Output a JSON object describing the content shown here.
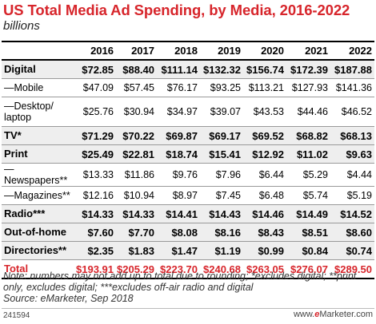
{
  "chart_data": {
    "type": "table",
    "title": "US Total Media Ad Spending, by Media, 2016-2022",
    "subtitle": "billions",
    "columns": [
      "",
      "2016",
      "2017",
      "2018",
      "2019",
      "2020",
      "2021",
      "2022"
    ],
    "rows": [
      {
        "label": "Digital",
        "style": "main",
        "values": [
          "$72.85",
          "$88.40",
          "$111.14",
          "$132.32",
          "$156.74",
          "$172.39",
          "$187.88"
        ]
      },
      {
        "label": "—Mobile",
        "style": "sub",
        "values": [
          "$47.09",
          "$57.45",
          "$76.17",
          "$93.25",
          "$113.21",
          "$127.93",
          "$141.36"
        ]
      },
      {
        "label": "—Desktop/ laptop",
        "style": "tall",
        "values": [
          "$25.76",
          "$30.94",
          "$34.97",
          "$39.07",
          "$43.53",
          "$44.46",
          "$46.52"
        ]
      },
      {
        "label": "TV*",
        "style": "main",
        "values": [
          "$71.29",
          "$70.22",
          "$69.87",
          "$69.17",
          "$69.52",
          "$68.82",
          "$68.13"
        ]
      },
      {
        "label": "Print",
        "style": "main",
        "values": [
          "$25.49",
          "$22.81",
          "$18.74",
          "$15.41",
          "$12.92",
          "$11.02",
          "$9.63"
        ]
      },
      {
        "label": "—Newspapers**",
        "style": "sub",
        "values": [
          "$13.33",
          "$11.86",
          "$9.76",
          "$7.96",
          "$6.44",
          "$5.29",
          "$4.44"
        ]
      },
      {
        "label": "—Magazines**",
        "style": "sub",
        "values": [
          "$12.16",
          "$10.94",
          "$8.97",
          "$7.45",
          "$6.48",
          "$5.74",
          "$5.19"
        ]
      },
      {
        "label": "Radio***",
        "style": "main",
        "values": [
          "$14.33",
          "$14.33",
          "$14.41",
          "$14.43",
          "$14.46",
          "$14.49",
          "$14.52"
        ]
      },
      {
        "label": "Out-of-home",
        "style": "main",
        "values": [
          "$7.60",
          "$7.70",
          "$8.08",
          "$8.16",
          "$8.43",
          "$8.51",
          "$8.60"
        ]
      },
      {
        "label": "Directories**",
        "style": "main",
        "values": [
          "$2.35",
          "$1.83",
          "$1.47",
          "$1.19",
          "$0.99",
          "$0.84",
          "$0.74"
        ]
      },
      {
        "label": "Total",
        "style": "total",
        "values": [
          "$193.91",
          "$205.29",
          "$223.70",
          "$240.68",
          "$263.05",
          "$276.07",
          "$289.50"
        ]
      }
    ]
  },
  "note": "Note: numbers may not add up to total due to rounding; *excludes digital; **print only, excludes digital; ***excludes off-air radio and digital",
  "source": "Source: eMarketer, Sep 2018",
  "footer": {
    "id": "241594",
    "brand_prefix": "www.",
    "brand_e": "e",
    "brand_suffix": "Marketer.com"
  },
  "colors": {
    "accent": "#d7252b"
  }
}
